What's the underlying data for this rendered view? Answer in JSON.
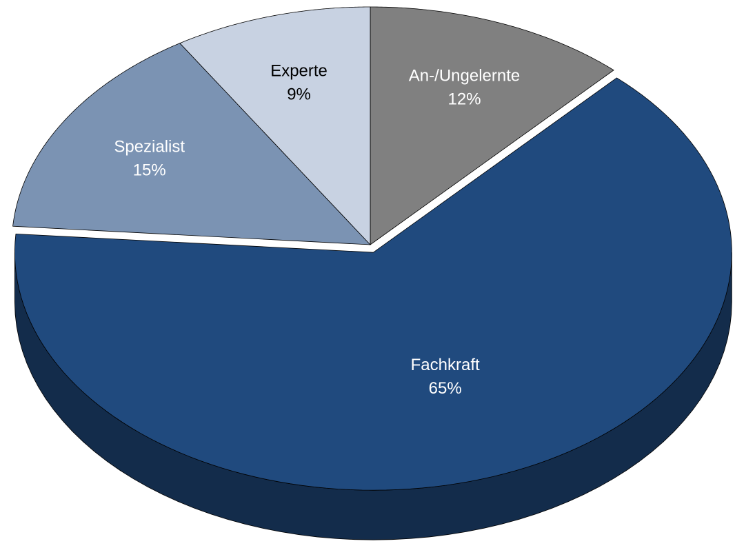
{
  "chart_data": {
    "type": "pie",
    "categories": [
      "An-/Ungelernte",
      "Fachkraft",
      "Spezialist",
      "Experte"
    ],
    "values": [
      12,
      65,
      15,
      9
    ],
    "value_labels": [
      "12%",
      "65%",
      "15%",
      "9%"
    ],
    "colors": [
      "#808080",
      "#204a7e",
      "#7b93b3",
      "#c8d2e2"
    ],
    "exploded": [
      "Fachkraft"
    ]
  }
}
